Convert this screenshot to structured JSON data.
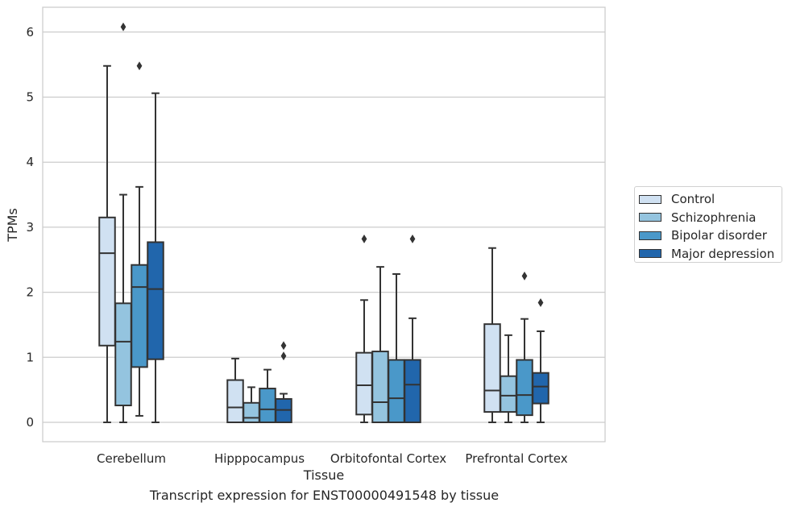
{
  "chart_data": {
    "type": "box",
    "title": "",
    "caption": "Transcript expression for ENST00000491548 by tissue",
    "xlabel": "Tissue",
    "ylabel": "TPMs",
    "ylim": [
      -0.3,
      6.4
    ],
    "yticks": [
      0,
      1,
      2,
      3,
      4,
      5,
      6
    ],
    "grid": "horizontal",
    "legend_position": "right",
    "categories": [
      "Cerebellum",
      "Hipppocampus",
      "Orbitofontal Cortex",
      "Prefrontal Cortex"
    ],
    "series": [
      {
        "name": "Control",
        "color": "#d0e1f2",
        "boxes": [
          {
            "whisker_low": 0.0,
            "q1": 1.18,
            "median": 2.6,
            "q3": 3.15,
            "whisker_high": 5.48,
            "outliers": []
          },
          {
            "whisker_low": 0.0,
            "q1": 0.0,
            "median": 0.23,
            "q3": 0.65,
            "whisker_high": 0.98,
            "outliers": []
          },
          {
            "whisker_low": 0.0,
            "q1": 0.12,
            "median": 0.57,
            "q3": 1.07,
            "whisker_high": 1.88,
            "outliers": [
              2.82
            ]
          },
          {
            "whisker_low": 0.0,
            "q1": 0.16,
            "median": 0.49,
            "q3": 1.51,
            "whisker_high": 2.68,
            "outliers": []
          }
        ]
      },
      {
        "name": "Schizophrenia",
        "color": "#94c4df",
        "boxes": [
          {
            "whisker_low": 0.0,
            "q1": 0.26,
            "median": 1.24,
            "q3": 1.83,
            "whisker_high": 3.5,
            "outliers": [
              6.08
            ]
          },
          {
            "whisker_low": 0.0,
            "q1": 0.0,
            "median": 0.07,
            "q3": 0.3,
            "whisker_high": 0.54,
            "outliers": []
          },
          {
            "whisker_low": 0.0,
            "q1": 0.0,
            "median": 0.31,
            "q3": 1.09,
            "whisker_high": 2.39,
            "outliers": []
          },
          {
            "whisker_low": 0.0,
            "q1": 0.16,
            "median": 0.41,
            "q3": 0.71,
            "whisker_high": 1.34,
            "outliers": []
          }
        ]
      },
      {
        "name": "Bipolar disorder",
        "color": "#4a98c9",
        "boxes": [
          {
            "whisker_low": 0.1,
            "q1": 0.85,
            "median": 2.08,
            "q3": 2.42,
            "whisker_high": 3.62,
            "outliers": [
              5.48
            ]
          },
          {
            "whisker_low": 0.0,
            "q1": 0.0,
            "median": 0.2,
            "q3": 0.52,
            "whisker_high": 0.81,
            "outliers": []
          },
          {
            "whisker_low": 0.0,
            "q1": 0.0,
            "median": 0.37,
            "q3": 0.96,
            "whisker_high": 2.28,
            "outliers": []
          },
          {
            "whisker_low": 0.0,
            "q1": 0.11,
            "median": 0.42,
            "q3": 0.96,
            "whisker_high": 1.59,
            "outliers": [
              2.25
            ]
          }
        ]
      },
      {
        "name": "Major depression",
        "color": "#2166ac",
        "boxes": [
          {
            "whisker_low": 0.0,
            "q1": 0.97,
            "median": 2.05,
            "q3": 2.77,
            "whisker_high": 5.06,
            "outliers": []
          },
          {
            "whisker_low": 0.0,
            "q1": 0.0,
            "median": 0.19,
            "q3": 0.36,
            "whisker_high": 0.44,
            "outliers": [
              1.02,
              1.18
            ]
          },
          {
            "whisker_low": 0.0,
            "q1": 0.0,
            "median": 0.58,
            "q3": 0.96,
            "whisker_high": 1.6,
            "outliers": [
              2.82
            ]
          },
          {
            "whisker_low": 0.0,
            "q1": 0.29,
            "median": 0.55,
            "q3": 0.76,
            "whisker_high": 1.4,
            "outliers": [
              1.84
            ]
          }
        ]
      }
    ]
  }
}
